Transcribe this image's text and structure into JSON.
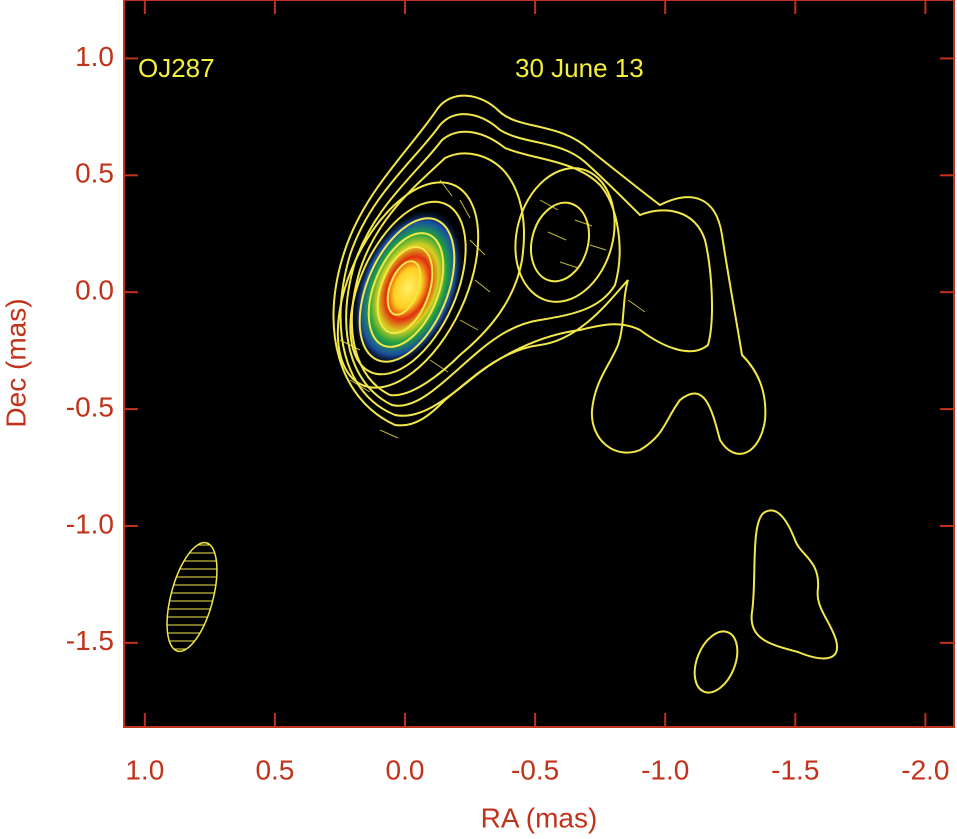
{
  "chart_data": {
    "type": "contour-map",
    "xlabel": "RA (mas)",
    "ylabel": "Dec (mas)",
    "annotations": [
      "OJ287",
      "30 June 13"
    ],
    "xlim": [
      1.08,
      -2.11
    ],
    "ylim": [
      -1.86,
      1.25
    ],
    "xticks": [
      {
        "value": 1.0,
        "label": "1.0"
      },
      0.5,
      {
        "value": 0.0,
        "label": "0.0"
      },
      -0.5,
      {
        "value": -1.0,
        "label": "-1.0"
      },
      -1.5,
      {
        "value": -2.0,
        "label": "-2.0"
      }
    ],
    "yticks": [
      {
        "value": 1.0,
        "label": "1.0"
      },
      0.5,
      {
        "value": 0.0,
        "label": "0.0"
      },
      -0.5,
      {
        "value": -1.0,
        "label": "-1.0"
      },
      -1.5
    ],
    "axis_color": "#c0321a",
    "contour_color": "#f2e84a"
  }
}
